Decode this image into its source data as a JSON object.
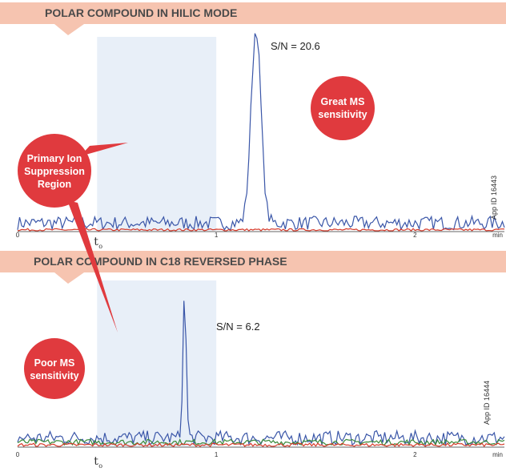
{
  "colors": {
    "banner": "#f6c4b0",
    "shading": "#e8eff8",
    "bubble": "#e03a3e",
    "series_blue": "#3a56a8",
    "series_red": "#d63a2a",
    "series_green": "#3a8a3a"
  },
  "chart_data": [
    {
      "type": "line",
      "title": "POLAR COMPOUND IN HILIC MODE",
      "xlabel": "min",
      "xlim": [
        0,
        2.45
      ],
      "x_ticks": [
        "0",
        "1",
        "2"
      ],
      "t0_label": "t",
      "t0_subscript": "o",
      "t0": 0.4,
      "ion_suppression_region": [
        0.4,
        1.0
      ],
      "peak": {
        "retention_time": 1.2,
        "relative_height": 1.0
      },
      "sn_label": "S/N = 20.6",
      "annotation": [
        "Great MS",
        "sensitivity"
      ],
      "app_id": "App ID 16443",
      "series": [
        {
          "color": "blue",
          "baseline": 0.04,
          "noise": 0.035
        },
        {
          "color": "red",
          "baseline": 0.005,
          "noise": 0.006
        }
      ]
    },
    {
      "type": "line",
      "title": "POLAR COMPOUND IN C18 REVERSED PHASE",
      "xlabel": "min",
      "xlim": [
        0,
        2.45
      ],
      "x_ticks": [
        "0",
        "1",
        "2"
      ],
      "t0_label": "t",
      "t0_subscript": "o",
      "t0": 0.4,
      "ion_suppression_region": [
        0.4,
        1.0
      ],
      "peak": {
        "retention_time": 0.84,
        "relative_height": 1.0
      },
      "sn_label": "S/N = 6.2",
      "annotation": [
        "Poor MS",
        "sensitivity"
      ],
      "app_id": "App ID 16444",
      "series": [
        {
          "color": "blue",
          "baseline": 0.06,
          "noise": 0.05
        },
        {
          "color": "green",
          "baseline": 0.03,
          "noise": 0.02
        },
        {
          "color": "red",
          "baseline": 0.01,
          "noise": 0.012
        }
      ]
    }
  ],
  "suppression_label": [
    "Primary Ion",
    "Suppression",
    "Region"
  ]
}
